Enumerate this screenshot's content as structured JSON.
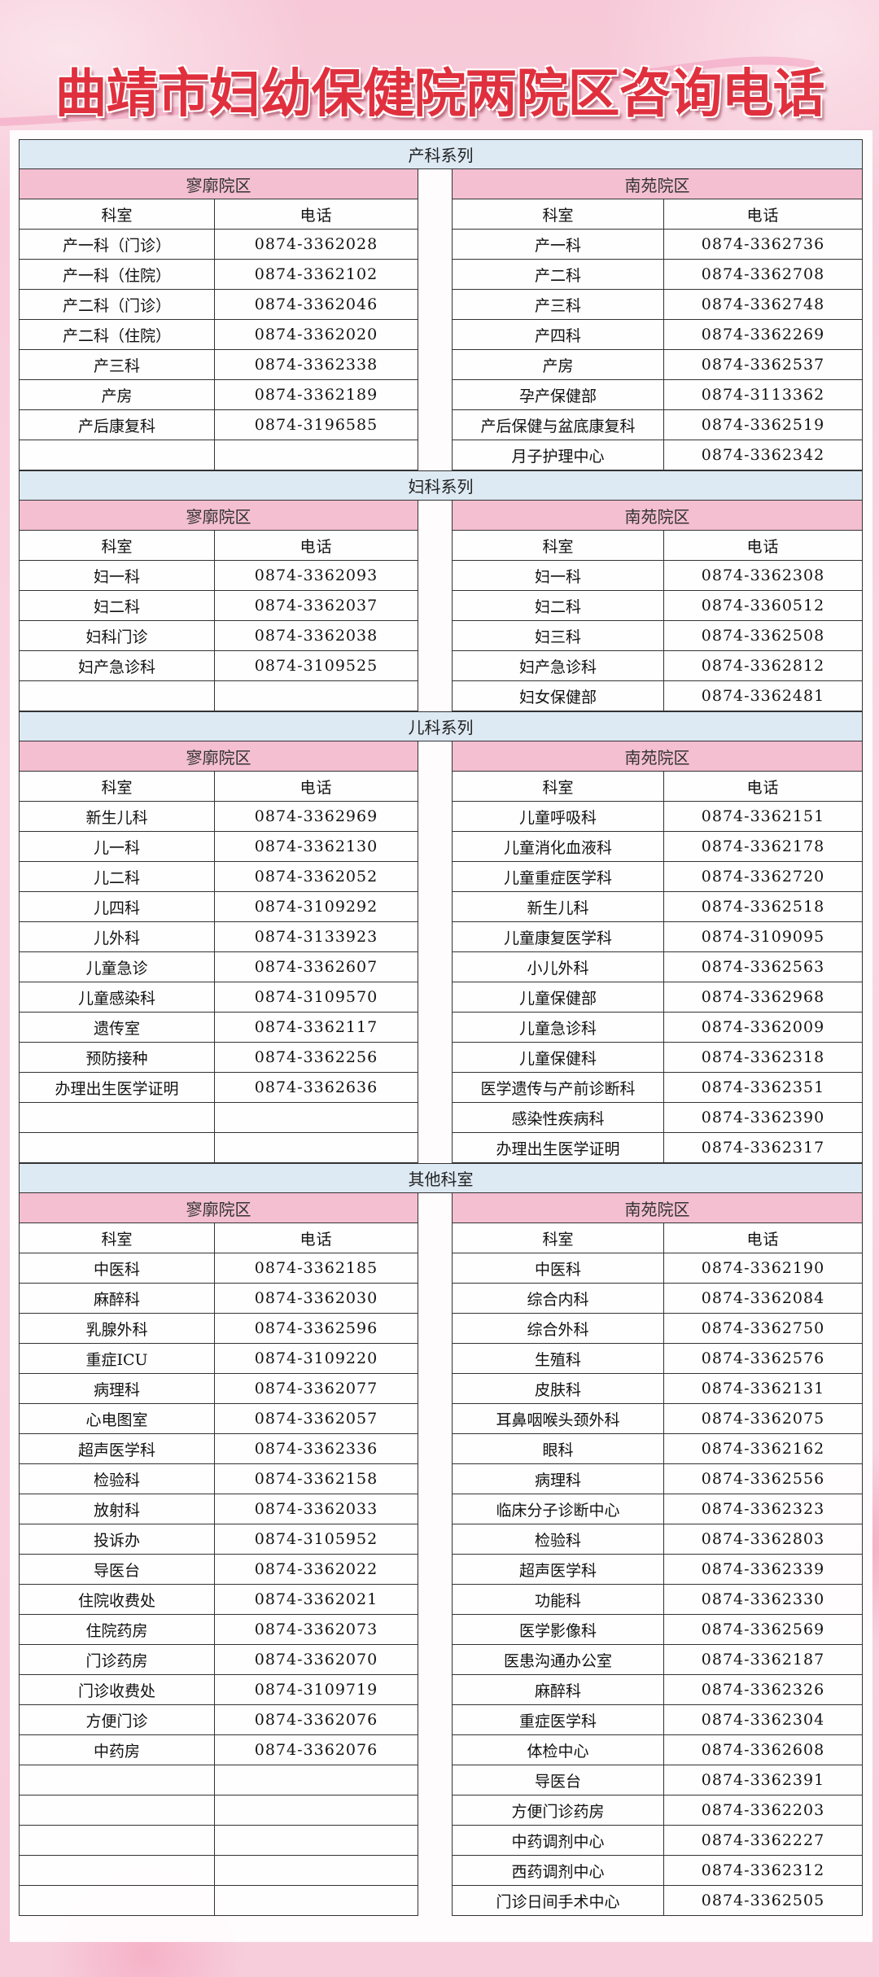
{
  "title": "曲靖市妇幼保健院两院区咨询电话",
  "colors": {
    "title": "#e0303e",
    "section_header_bg": "#dde9f3",
    "campus_header_bg": "#f4bfd0"
  },
  "column_headers": {
    "dept": "科室",
    "phone": "电话"
  },
  "sections": [
    {
      "name": "产科系列",
      "left": {
        "campus": "寥廓院区",
        "rows": [
          [
            "产一科（门诊）",
            "0874-3362028"
          ],
          [
            "产一科（住院）",
            "0874-3362102"
          ],
          [
            "产二科（门诊）",
            "0874-3362046"
          ],
          [
            "产二科（住院）",
            "0874-3362020"
          ],
          [
            "产三科",
            "0874-3362338"
          ],
          [
            "产房",
            "0874-3362189"
          ],
          [
            "产后康复科",
            "0874-3196585"
          ]
        ]
      },
      "right": {
        "campus": "南苑院区",
        "rows": [
          [
            "产一科",
            "0874-3362736"
          ],
          [
            "产二科",
            "0874-3362708"
          ],
          [
            "产三科",
            "0874-3362748"
          ],
          [
            "产四科",
            "0874-3362269"
          ],
          [
            "产房",
            "0874-3362537"
          ],
          [
            "孕产保健部",
            "0874-3113362"
          ],
          [
            "产后保健与盆底康复科",
            "0874-3362519"
          ],
          [
            "月子护理中心",
            "0874-3362342"
          ]
        ]
      }
    },
    {
      "name": "妇科系列",
      "left": {
        "campus": "寥廓院区",
        "rows": [
          [
            "妇一科",
            "0874-3362093"
          ],
          [
            "妇二科",
            "0874-3362037"
          ],
          [
            "妇科门诊",
            "0874-3362038"
          ],
          [
            "妇产急诊科",
            "0874-3109525"
          ]
        ]
      },
      "right": {
        "campus": "南苑院区",
        "rows": [
          [
            "妇一科",
            "0874-3362308"
          ],
          [
            "妇二科",
            "0874-3360512"
          ],
          [
            "妇三科",
            "0874-3362508"
          ],
          [
            "妇产急诊科",
            "0874-3362812"
          ],
          [
            "妇女保健部",
            "0874-3362481"
          ]
        ]
      }
    },
    {
      "name": "儿科系列",
      "left": {
        "campus": "寥廓院区",
        "rows": [
          [
            "新生儿科",
            "0874-3362969"
          ],
          [
            "儿一科",
            "0874-3362130"
          ],
          [
            "儿二科",
            "0874-3362052"
          ],
          [
            "儿四科",
            "0874-3109292"
          ],
          [
            "儿外科",
            "0874-3133923"
          ],
          [
            "儿童急诊",
            "0874-3362607"
          ],
          [
            "儿童感染科",
            "0874-3109570"
          ],
          [
            "遗传室",
            "0874-3362117"
          ],
          [
            "预防接种",
            "0874-3362256"
          ],
          [
            "办理出生医学证明",
            "0874-3362636"
          ]
        ]
      },
      "right": {
        "campus": "南苑院区",
        "rows": [
          [
            "儿童呼吸科",
            "0874-3362151"
          ],
          [
            "儿童消化血液科",
            "0874-3362178"
          ],
          [
            "儿童重症医学科",
            "0874-3362720"
          ],
          [
            "新生儿科",
            "0874-3362518"
          ],
          [
            "儿童康复医学科",
            "0874-3109095"
          ],
          [
            "小儿外科",
            "0874-3362563"
          ],
          [
            "儿童保健部",
            "0874-3362968"
          ],
          [
            "儿童急诊科",
            "0874-3362009"
          ],
          [
            "儿童保健科",
            "0874-3362318"
          ],
          [
            "医学遗传与产前诊断科",
            "0874-3362351"
          ],
          [
            "感染性疾病科",
            "0874-3362390"
          ],
          [
            "办理出生医学证明",
            "0874-3362317"
          ]
        ]
      }
    },
    {
      "name": "其他科室",
      "left": {
        "campus": "寥廓院区",
        "rows": [
          [
            "中医科",
            "0874-3362185"
          ],
          [
            "麻醉科",
            "0874-3362030"
          ],
          [
            "乳腺外科",
            "0874-3362596"
          ],
          [
            "重症ICU",
            "0874-3109220"
          ],
          [
            "病理科",
            "0874-3362077"
          ],
          [
            "心电图室",
            "0874-3362057"
          ],
          [
            "超声医学科",
            "0874-3362336"
          ],
          [
            "检验科",
            "0874-3362158"
          ],
          [
            "放射科",
            "0874-3362033"
          ],
          [
            "投诉办",
            "0874-3105952"
          ],
          [
            "导医台",
            "0874-3362022"
          ],
          [
            "住院收费处",
            "0874-3362021"
          ],
          [
            "住院药房",
            "0874-3362073"
          ],
          [
            "门诊药房",
            "0874-3362070"
          ],
          [
            "门诊收费处",
            "0874-3109719"
          ],
          [
            "方便门诊",
            "0874-3362076"
          ],
          [
            "中药房",
            "0874-3362076"
          ]
        ]
      },
      "right": {
        "campus": "南苑院区",
        "rows": [
          [
            "中医科",
            "0874-3362190"
          ],
          [
            "综合内科",
            "0874-3362084"
          ],
          [
            "综合外科",
            "0874-3362750"
          ],
          [
            "生殖科",
            "0874-3362576"
          ],
          [
            "皮肤科",
            "0874-3362131"
          ],
          [
            "耳鼻咽喉头颈外科",
            "0874-3362075"
          ],
          [
            "眼科",
            "0874-3362162"
          ],
          [
            "病理科",
            "0874-3362556"
          ],
          [
            "临床分子诊断中心",
            "0874-3362323"
          ],
          [
            "检验科",
            "0874-3362803"
          ],
          [
            "超声医学科",
            "0874-3362339"
          ],
          [
            "功能科",
            "0874-3362330"
          ],
          [
            "医学影像科",
            "0874-3362569"
          ],
          [
            "医患沟通办公室",
            "0874-3362187"
          ],
          [
            "麻醉科",
            "0874-3362326"
          ],
          [
            "重症医学科",
            "0874-3362304"
          ],
          [
            "体检中心",
            "0874-3362608"
          ],
          [
            "导医台",
            "0874-3362391"
          ],
          [
            "方便门诊药房",
            "0874-3362203"
          ],
          [
            "中药调剂中心",
            "0874-3362227"
          ],
          [
            "西药调剂中心",
            "0874-3362312"
          ],
          [
            "门诊日间手术中心",
            "0874-3362505"
          ]
        ]
      }
    }
  ]
}
